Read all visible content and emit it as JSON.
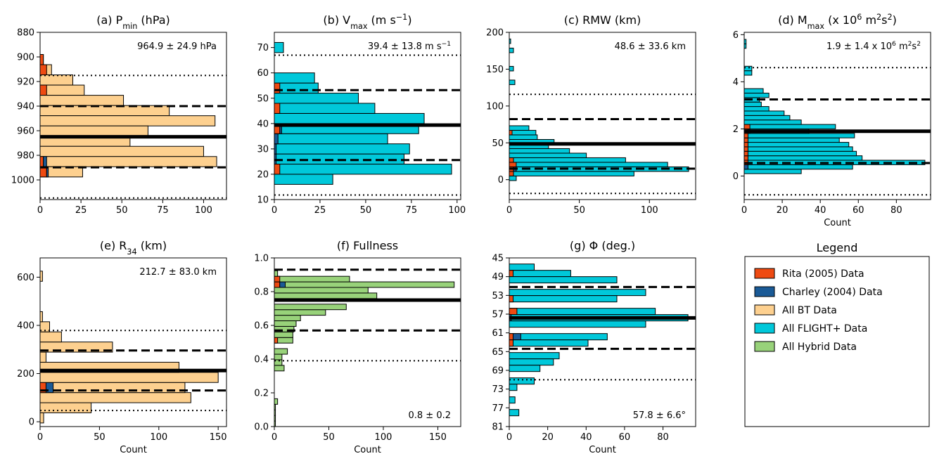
{
  "colors": {
    "rita": "#ee4a12",
    "charley": "#1a5a96",
    "bt": "#fdd08f",
    "flight": "#00c8da",
    "hybrid": "#98d27a",
    "edge": "#000000"
  },
  "legend": {
    "title": "Legend",
    "items": [
      {
        "label": "Rita (2005) Data",
        "color_key": "rita"
      },
      {
        "label": "Charley (2004) Data",
        "color_key": "charley"
      },
      {
        "label": "All BT Data",
        "color_key": "bt"
      },
      {
        "label": "All FLIGHT+ Data",
        "color_key": "flight"
      },
      {
        "label": "All Hybrid Data",
        "color_key": "hybrid"
      }
    ]
  },
  "chart_data": [
    {
      "id": "a",
      "type": "bar",
      "orientation": "horizontal",
      "title": "(a) P",
      "title_sub": "min",
      "title_tail": " (hPa)",
      "annotation": "964.9 ± 24.9 hPa",
      "annotation_pos": "top-right",
      "xlabel": "",
      "xlim": [
        0,
        114
      ],
      "ylim": [
        880,
        1016
      ],
      "y_inverted": true,
      "xticks": [
        0,
        25,
        50,
        75,
        100
      ],
      "yticks": [
        880,
        900,
        920,
        940,
        960,
        980,
        1000
      ],
      "bin_width": 8.3,
      "main_color": "bt",
      "bins": [
        898,
        906.3,
        914.6,
        922.9,
        931.2,
        939.5,
        947.8,
        956.1,
        964.4,
        972.7,
        981,
        989.3,
        997.6,
        1005.9
      ],
      "counts": [
        2,
        7,
        20,
        27,
        51,
        79,
        107,
        66,
        55,
        100,
        108,
        26,
        0,
        0
      ],
      "rita": [
        2,
        4,
        0,
        4,
        0,
        0,
        0,
        0,
        0,
        0,
        2,
        4,
        0,
        0
      ],
      "charley": [
        0,
        0,
        0,
        0,
        0,
        0,
        0,
        0,
        0,
        0,
        2,
        1,
        0,
        0
      ],
      "mean": 964.9,
      "sd1": [
        940.0,
        989.8
      ],
      "sd2": [
        915.1,
        1014.7
      ]
    },
    {
      "id": "b",
      "type": "bar",
      "orientation": "horizontal",
      "title": "(b) V",
      "title_sub": "max",
      "title_tail": " (m s",
      "title_sup": "−1",
      "title_end": ")",
      "annotation": "39.4 ± 13.8 m s",
      "annotation_sup": "−1",
      "annotation_pos": "top-right",
      "xlabel": "",
      "xlim": [
        0,
        102
      ],
      "ylim": [
        10,
        76
      ],
      "y_inverted": false,
      "xticks": [
        0,
        25,
        50,
        75,
        100
      ],
      "yticks": [
        10,
        20,
        30,
        40,
        50,
        60,
        70
      ],
      "bin_width": 4.0,
      "main_color": "flight",
      "bins": [
        16,
        20,
        24,
        28,
        32,
        36,
        40,
        44,
        48,
        52,
        56,
        60,
        64,
        68
      ],
      "counts": [
        32,
        97,
        71,
        74,
        62,
        79,
        82,
        55,
        46,
        24,
        22,
        0,
        0,
        5
      ],
      "rita": [
        0,
        3,
        0,
        0,
        0,
        3,
        0,
        3,
        0,
        3,
        0,
        0,
        0,
        0
      ],
      "charley": [
        0,
        0,
        1,
        1,
        2,
        1,
        0,
        0,
        0,
        0,
        0,
        0,
        0,
        0
      ],
      "mean": 39.4,
      "sd1": [
        25.6,
        53.2
      ],
      "sd2": [
        11.8,
        67.0
      ]
    },
    {
      "id": "c",
      "type": "bar",
      "orientation": "horizontal",
      "title": "(c) RMW (km)",
      "annotation": "48.6 ± 33.6 km",
      "annotation_pos": "top-right",
      "xlabel": "",
      "xlim": [
        0,
        133
      ],
      "ylim": [
        -27,
        200
      ],
      "y_inverted": false,
      "xticks": [
        0,
        50,
        100
      ],
      "yticks": [
        0,
        50,
        100,
        150,
        200
      ],
      "bin_width": 6.2,
      "main_color": "flight",
      "bins": [
        -1.2,
        5.0,
        11.2,
        17.4,
        23.6,
        29.8,
        36.0,
        42.2,
        48.4,
        54.6,
        60.8,
        67.0,
        73.2,
        79.4,
        85.6,
        91.8,
        98.0,
        104.2,
        110.4,
        116.6,
        122.8,
        129.0,
        135.2,
        141.4,
        147.6,
        153.8,
        160.0,
        166.2,
        172.4,
        178.6,
        184.8
      ],
      "counts": [
        5,
        89,
        128,
        113,
        83,
        55,
        43,
        28,
        32,
        20,
        19,
        14,
        0,
        0,
        0,
        0,
        0,
        0,
        0,
        0,
        0,
        4,
        0,
        0,
        3,
        0,
        0,
        0,
        3,
        0,
        1
      ],
      "rita": [
        0,
        3,
        3,
        5,
        3,
        0,
        0,
        0,
        0,
        0,
        2,
        0,
        0,
        0,
        0,
        0,
        0,
        0,
        0,
        0,
        0,
        0,
        0,
        0,
        0,
        0,
        0,
        0,
        0,
        0,
        0
      ],
      "charley": [
        0,
        0,
        2,
        0,
        0,
        0,
        0,
        0,
        0,
        0,
        0,
        0,
        0,
        0,
        0,
        0,
        0,
        0,
        0,
        0,
        0,
        0,
        0,
        0,
        0,
        0,
        0,
        0,
        0,
        0,
        0
      ],
      "mean": 48.6,
      "sd1": [
        15.0,
        82.2
      ],
      "sd2": [
        -18.6,
        115.8
      ]
    },
    {
      "id": "d",
      "type": "bar",
      "orientation": "horizontal",
      "title": "(d) M",
      "title_sub": "max",
      "title_tail": " (x 10",
      "title_sup": "6",
      "title_tail2": " m",
      "title_sup2": "2",
      "title_tail3": "s",
      "title_sup3": "2",
      "title_end": ")",
      "annotation": "1.9 ± 1.4 x 10",
      "annotation_sup": "6",
      "annotation_tail": " m",
      "annotation_sup2": "2",
      "annotation_tail2": "s",
      "annotation_sup3": "2",
      "annotation_pos": "top-right",
      "xlabel": "Count",
      "xlim": [
        0,
        98
      ],
      "ylim": [
        -1.0,
        6.1
      ],
      "y_inverted": false,
      "xticks": [
        0,
        20,
        40,
        60,
        80
      ],
      "yticks": [
        0,
        2,
        4,
        6
      ],
      "bin_width": 0.19,
      "main_color": "flight",
      "bins": [
        0.1,
        0.29,
        0.48,
        0.67,
        0.86,
        1.05,
        1.24,
        1.43,
        1.62,
        1.81,
        2.0,
        2.19,
        2.38,
        2.57,
        2.76,
        2.95,
        3.14,
        3.33,
        3.52,
        3.71,
        3.9,
        4.09,
        4.28,
        4.47,
        4.66,
        4.85,
        5.04,
        5.23,
        5.42,
        5.61
      ],
      "counts": [
        30,
        57,
        95,
        62,
        59,
        57,
        55,
        50,
        58,
        34,
        48,
        30,
        24,
        21,
        13,
        9,
        8,
        13,
        10,
        0,
        0,
        0,
        4,
        4,
        0,
        0,
        0,
        0,
        1,
        1
      ],
      "rita": [
        0,
        0,
        2,
        2,
        2,
        2,
        2,
        2,
        2,
        2,
        3,
        0,
        0,
        0,
        0,
        0,
        0,
        0,
        0,
        0,
        0,
        0,
        0,
        0,
        0,
        0,
        0,
        0,
        0,
        0
      ],
      "charley": [
        0,
        2,
        0,
        0,
        0,
        0,
        0,
        0,
        0,
        1,
        0,
        0,
        0,
        0,
        0,
        0,
        0,
        0,
        0,
        0,
        0,
        0,
        0,
        0,
        0,
        0,
        0,
        0,
        0,
        0
      ],
      "mean": 1.9,
      "sd1": [
        0.55,
        3.25
      ],
      "sd2": [
        -0.8,
        4.6
      ]
    },
    {
      "id": "e",
      "type": "bar",
      "orientation": "horizontal",
      "title": "(e) R",
      "title_sub": "34",
      "title_tail": " (km)",
      "annotation": "212.7 ± 83.0 km",
      "annotation_pos": "top-right",
      "xlabel": "Count",
      "xlim": [
        0,
        157
      ],
      "ylim": [
        -20,
        680
      ],
      "y_inverted": false,
      "xticks": [
        0,
        50,
        100,
        150
      ],
      "yticks": [
        0,
        200,
        400,
        600
      ],
      "bin_width": 42.0,
      "main_color": "bt",
      "bins": [
        -5,
        37,
        79,
        121,
        163,
        205,
        247,
        289,
        331,
        373,
        415,
        457,
        499,
        541,
        583
      ],
      "counts": [
        3,
        43,
        127,
        122,
        150,
        117,
        5,
        61,
        18,
        8,
        2,
        0,
        0,
        0,
        2
      ],
      "rita": [
        0,
        0,
        0,
        5,
        0,
        0,
        0,
        0,
        0,
        0,
        0,
        0,
        0,
        0,
        0
      ],
      "charley": [
        0,
        0,
        0,
        6,
        0,
        0,
        0,
        0,
        0,
        0,
        0,
        0,
        0,
        0,
        0
      ],
      "mean": 212.7,
      "sd1": [
        129.7,
        295.7
      ],
      "sd2": [
        46.7,
        378.7
      ]
    },
    {
      "id": "f",
      "type": "bar",
      "orientation": "horizontal",
      "title": "(f) Fullness",
      "annotation": "0.8 ± 0.2",
      "annotation_pos": "bottom-right",
      "xlabel": "Count",
      "xlim": [
        0,
        171
      ],
      "ylim": [
        0.0,
        1.0
      ],
      "y_inverted": false,
      "xticks": [
        0,
        50,
        100,
        150
      ],
      "yticks": [
        0.0,
        0.2,
        0.4,
        0.6,
        0.8,
        1.0
      ],
      "bin_width": 0.033,
      "main_color": "hybrid",
      "bins": [
        0.0,
        0.033,
        0.066,
        0.099,
        0.132,
        0.165,
        0.198,
        0.231,
        0.264,
        0.297,
        0.33,
        0.363,
        0.396,
        0.429,
        0.462,
        0.495,
        0.528,
        0.561,
        0.594,
        0.627,
        0.66,
        0.693,
        0.726,
        0.759,
        0.792,
        0.825,
        0.858,
        0.891,
        0.924,
        0.957
      ],
      "counts": [
        1,
        1,
        1,
        1,
        3,
        0,
        0,
        0,
        0,
        0,
        9,
        7,
        7,
        12,
        0,
        17,
        17,
        18,
        20,
        24,
        47,
        66,
        0,
        94,
        86,
        165,
        69,
        3,
        0,
        0
      ],
      "rita": [
        0,
        0,
        0,
        0,
        0,
        0,
        0,
        0,
        0,
        0,
        0,
        0,
        0,
        0,
        0,
        3,
        0,
        0,
        0,
        0,
        0,
        0,
        0,
        0,
        0,
        5,
        5,
        0,
        0,
        0
      ],
      "charley": [
        0,
        0,
        0,
        0,
        0,
        0,
        0,
        0,
        0,
        0,
        0,
        0,
        0,
        0,
        0,
        0,
        0,
        0,
        0,
        0,
        0,
        0,
        0,
        0,
        0,
        5,
        0,
        0,
        0,
        0
      ],
      "mean": 0.75,
      "sd1": [
        0.57,
        0.93
      ],
      "sd2": [
        0.39,
        1.11
      ]
    },
    {
      "id": "g",
      "type": "bar",
      "orientation": "horizontal",
      "title": "(g) Φ (deg.)",
      "annotation": "57.8 ± 6.6°",
      "annotation_pos": "bottom-right",
      "xlabel": "Count",
      "xlim": [
        0,
        97
      ],
      "ylim": [
        81,
        45
      ],
      "y_inverted": true,
      "xticks": [
        0,
        20,
        40,
        60,
        80
      ],
      "yticks": [
        45,
        49,
        53,
        57,
        61,
        65,
        69,
        73,
        77,
        81
      ],
      "bin_width": 1.35,
      "main_color": "flight",
      "bins": [
        46.3,
        47.65,
        49.0,
        50.35,
        51.7,
        53.05,
        54.4,
        55.75,
        57.1,
        58.45,
        59.8,
        61.15,
        62.5,
        63.85,
        65.2,
        66.55,
        67.9,
        69.25,
        70.6,
        71.95,
        73.3,
        74.65,
        76.0,
        77.35,
        78.7
      ],
      "counts": [
        13,
        32,
        56,
        0,
        71,
        56,
        0,
        76,
        93,
        71,
        0,
        51,
        41,
        0,
        26,
        23,
        16,
        0,
        13,
        4,
        0,
        3,
        0,
        5,
        0
      ],
      "rita": [
        0,
        2,
        0,
        0,
        0,
        2,
        0,
        4,
        0,
        0,
        0,
        2,
        2,
        0,
        0,
        0,
        0,
        0,
        0,
        0,
        0,
        0,
        0,
        0,
        0
      ],
      "charley": [
        0,
        0,
        0,
        0,
        0,
        0,
        0,
        0,
        1,
        0,
        0,
        4,
        0,
        0,
        0,
        0,
        0,
        0,
        0,
        0,
        0,
        0,
        0,
        0,
        0
      ],
      "mean": 57.8,
      "sd1": [
        51.2,
        64.4
      ],
      "sd2": [
        44.6,
        71.0
      ]
    }
  ]
}
